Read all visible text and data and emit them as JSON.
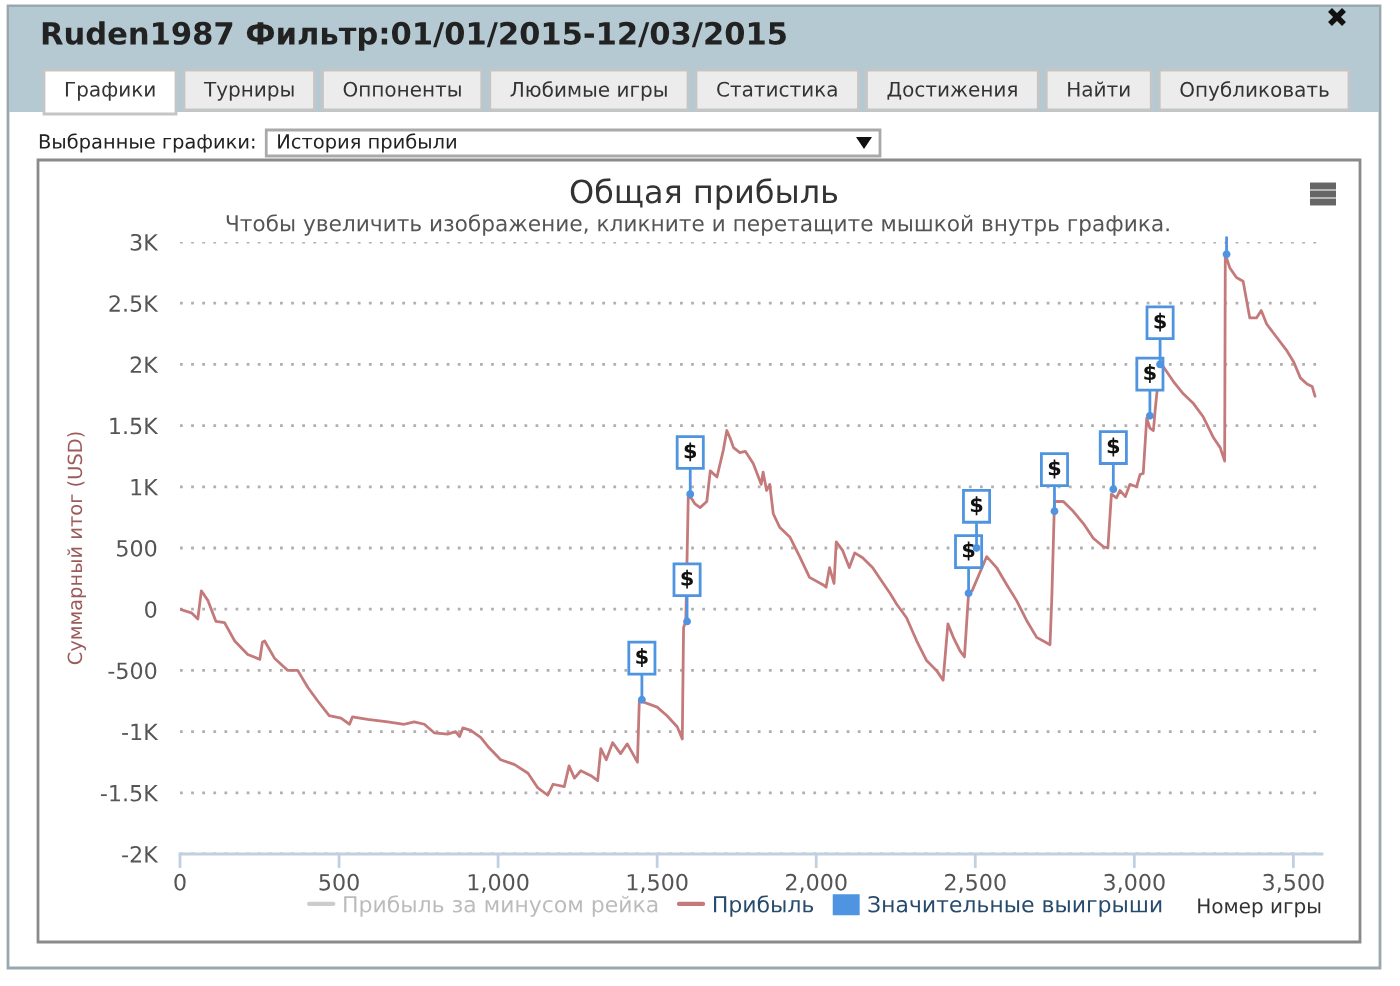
{
  "chart_data": {
    "type": "line",
    "title": "Общая прибыль",
    "subtitle": "Чтобы увеличить изображение, кликните и перетащите мышкой внутрь графика.",
    "xlabel": "Номер игры",
    "ylabel": "Суммарный итог (USD)",
    "annotations": [
      "Ruden1987 Фильтр:01/01/2015-12/03/2015",
      "Графики",
      "Турниры",
      "Оппоненты",
      "Любимые игры",
      "Статистика",
      "Достижения",
      "Найти",
      "Опубликовать",
      "Выбранные графики:",
      "История прибыли"
    ],
    "xlim": [
      0,
      3590
    ],
    "xticks": [
      0,
      500,
      {
        "value": 1000,
        "label": "1,000"
      },
      {
        "value": 1500,
        "label": "1,500"
      },
      {
        "value": 2000,
        "label": "2,000"
      },
      {
        "value": 2500,
        "label": "2,500"
      },
      {
        "value": 3000,
        "label": "3,000"
      },
      {
        "value": 3500,
        "label": "3,500"
      }
    ],
    "ylim": [
      -2000,
      3000
    ],
    "yticks": [
      {
        "value": -2000,
        "label": "-2K"
      },
      {
        "value": -1500,
        "label": "-1.5K"
      },
      {
        "value": -1000,
        "label": "-1K"
      },
      -500,
      0,
      500,
      {
        "value": 1000,
        "label": "1K"
      },
      {
        "value": 1500,
        "label": "1.5K"
      },
      {
        "value": 2000,
        "label": "2K"
      },
      {
        "value": 2500,
        "label": "2.5K"
      },
      {
        "value": 3000,
        "label": "3K"
      }
    ],
    "grid": "y",
    "legend": "bottom",
    "series": [
      {
        "name": "Прибыль за минусом рейка",
        "color": "#cccccc"
      },
      {
        "name": "Прибыль",
        "color": "#c47a7a",
        "x": [
          0,
          36,
          56,
          67,
          88,
          113,
          140,
          172,
          213,
          251,
          259,
          266,
          297,
          339,
          370,
          402,
          433,
          469,
          506,
          533,
          542,
          590,
          653,
          705,
          736,
          768,
          799,
          841,
          866,
          879,
          889,
          914,
          946,
          971,
          1008,
          1052,
          1094,
          1125,
          1156,
          1173,
          1208,
          1223,
          1240,
          1260,
          1292,
          1313,
          1323,
          1340,
          1360,
          1385,
          1406,
          1438,
          1444,
          1458,
          1479,
          1500,
          1531,
          1563,
          1579,
          1583,
          1590,
          1598,
          1604,
          1619,
          1635,
          1656,
          1667,
          1688,
          1708,
          1719,
          1729,
          1740,
          1760,
          1777,
          1802,
          1827,
          1833,
          1844,
          1854,
          1865,
          1885,
          1917,
          1948,
          1979,
          2021,
          2031,
          2042,
          2056,
          2063,
          2083,
          2104,
          2121,
          2146,
          2177,
          2219,
          2232,
          2253,
          2284,
          2316,
          2347,
          2378,
          2399,
          2414,
          2431,
          2452,
          2466,
          2479,
          2490,
          2536,
          2567,
          2599,
          2630,
          2661,
          2693,
          2714,
          2735,
          2741,
          2749,
          2777,
          2808,
          2840,
          2871,
          2903,
          2917,
          2928,
          2944,
          2955,
          2972,
          2986,
          3007,
          3018,
          3028,
          3039,
          3049,
          3060,
          3066,
          3081,
          3102,
          3123,
          3154,
          3186,
          3217,
          3249,
          3270,
          3284,
          3286,
          3300,
          3321,
          3342,
          3363,
          3384,
          3399,
          3416,
          3448,
          3480,
          3501,
          3522,
          3543,
          3559,
          3568
        ],
        "values": [
          0,
          -30,
          -80,
          150,
          70,
          -100,
          -110,
          -260,
          -370,
          -410,
          -270,
          -260,
          -400,
          -500,
          -500,
          -640,
          -750,
          -870,
          -890,
          -940,
          -880,
          -900,
          -920,
          -940,
          -920,
          -940,
          -1010,
          -1020,
          -1000,
          -1040,
          -970,
          -990,
          -1050,
          -1130,
          -1230,
          -1270,
          -1340,
          -1460,
          -1520,
          -1430,
          -1450,
          -1280,
          -1380,
          -1320,
          -1360,
          -1400,
          -1140,
          -1230,
          -1090,
          -1180,
          -1100,
          -1250,
          -740,
          -760,
          -780,
          -800,
          -870,
          -960,
          -1060,
          -150,
          -100,
          940,
          920,
          860,
          830,
          880,
          1130,
          1080,
          1300,
          1460,
          1400,
          1320,
          1280,
          1290,
          1190,
          1020,
          1120,
          970,
          1020,
          780,
          670,
          590,
          430,
          260,
          200,
          180,
          340,
          210,
          550,
          480,
          340,
          460,
          420,
          340,
          180,
          130,
          40,
          -70,
          -260,
          -420,
          -500,
          -580,
          -120,
          -230,
          -340,
          -390,
          130,
          150,
          430,
          340,
          200,
          70,
          -90,
          -230,
          -260,
          -290,
          120,
          880,
          880,
          800,
          700,
          580,
          510,
          500,
          940,
          910,
          970,
          920,
          1020,
          1000,
          1100,
          1110,
          1560,
          1480,
          1460,
          1640,
          2020,
          1940,
          1860,
          1760,
          1680,
          1570,
          1400,
          1320,
          1210,
          2900,
          2790,
          2710,
          2680,
          2380,
          2380,
          2440,
          2330,
          2220,
          2110,
          2020,
          1890,
          1840,
          1820,
          1740
        ]
      },
      {
        "name": "Значительные выигрыши",
        "type": "scatter",
        "color": "#4f94e0",
        "x": [
          1452,
          1594,
          1604,
          2479,
          2504,
          2749,
          2934,
          3049,
          3081,
          3290
        ],
        "values": [
          -740,
          -100,
          940,
          130,
          500,
          800,
          980,
          1580,
          2000,
          2900
        ],
        "value_labels": [
          "$",
          "$",
          "$",
          "$",
          "$",
          "$",
          "$",
          "$",
          "$",
          null
        ]
      }
    ]
  }
}
